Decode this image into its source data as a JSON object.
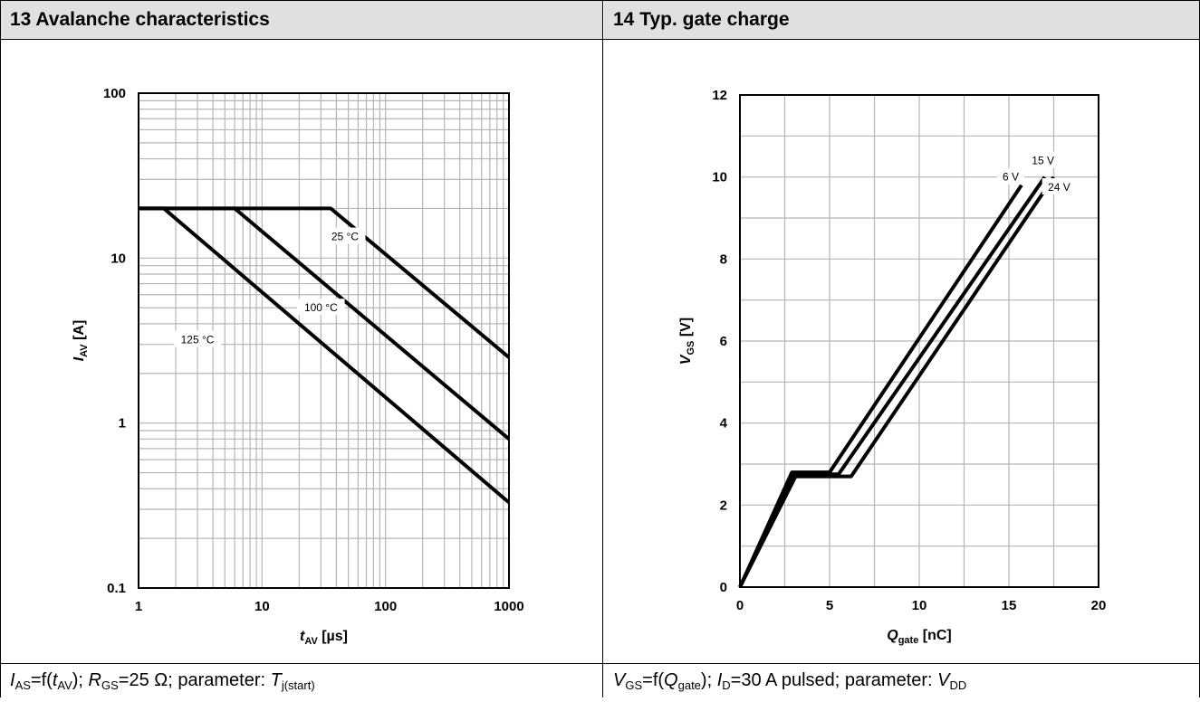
{
  "panels": [
    {
      "header": "13 Avalanche characteristics",
      "caption": {
        "p1": "I",
        "p1s": "AS",
        "p2": "=f(",
        "p3": "t",
        "p3s": "AV",
        "p4": "); ",
        "p5": "R",
        "p5s": "GS",
        "p6": "=25 Ω; parameter: ",
        "p7": "T",
        "p7s": "j(start)"
      }
    },
    {
      "header": "14 Typ. gate charge",
      "caption": {
        "p1": "V",
        "p1s": "GS",
        "p2": "=f(",
        "p3": "Q",
        "p3s": "gate",
        "p4": "); ",
        "p5": "I",
        "p5s": "D",
        "p6": "=30 A pulsed; parameter: ",
        "p7": "V",
        "p7s": "DD"
      }
    }
  ],
  "chart_data": [
    {
      "type": "line",
      "title": "13 Avalanche characteristics",
      "xlabel": {
        "main": "t",
        "sub": "AV",
        "unit": " [µs]"
      },
      "ylabel": {
        "main": "I",
        "sub": "AV",
        "unit": " [A]"
      },
      "xscale": "log",
      "yscale": "log",
      "xlim": [
        1,
        1000
      ],
      "ylim": [
        0.1,
        100
      ],
      "xticks": [
        1,
        10,
        100,
        1000
      ],
      "xtick_labels": [
        "1",
        "10",
        "100",
        "1000"
      ],
      "yticks": [
        0.1,
        1,
        10,
        100
      ],
      "ytick_labels": [
        "0.1",
        "1",
        "10",
        "100"
      ],
      "grid": true,
      "series": [
        {
          "name": "25 °C",
          "x": [
            1,
            36,
            1000
          ],
          "y": [
            20,
            20,
            2.5
          ],
          "label_at": [
            47,
            13.5
          ]
        },
        {
          "name": "100 °C",
          "x": [
            1,
            6,
            1000
          ],
          "y": [
            20,
            20,
            0.8
          ],
          "label_at": [
            30,
            5.0
          ]
        },
        {
          "name": "125 °C",
          "x": [
            1,
            1.6,
            1000
          ],
          "y": [
            20,
            20,
            0.33
          ],
          "label_at": [
            3.0,
            3.2
          ]
        }
      ]
    },
    {
      "type": "line",
      "title": "14 Typ. gate charge",
      "xlabel": {
        "main": "Q",
        "sub": "gate",
        "unit": " [nC]"
      },
      "ylabel": {
        "main": "V",
        "sub": "GS",
        "unit": " [V]"
      },
      "xlim": [
        0,
        20
      ],
      "ylim": [
        0,
        12
      ],
      "xticks": [
        0,
        5,
        10,
        15,
        20
      ],
      "xtick_labels": [
        "0",
        "5",
        "10",
        "15",
        "20"
      ],
      "yticks": [
        0,
        2,
        4,
        6,
        8,
        10,
        12
      ],
      "ytick_labels": [
        "0",
        "2",
        "4",
        "6",
        "8",
        "10",
        "12"
      ],
      "grid": true,
      "series": [
        {
          "name": "6 V",
          "x": [
            0,
            2.9,
            5.0,
            15.7
          ],
          "y": [
            0,
            2.8,
            2.8,
            9.8
          ],
          "label_at": [
            15.1,
            10.0
          ]
        },
        {
          "name": "15 V",
          "x": [
            0,
            3.0,
            5.5,
            17.0
          ],
          "y": [
            0,
            2.75,
            2.75,
            10.0
          ],
          "label_at": [
            16.9,
            10.4
          ]
        },
        {
          "name": "24 V",
          "x": [
            0,
            3.1,
            6.2,
            17.5
          ],
          "y": [
            0,
            2.7,
            2.7,
            10.0
          ],
          "label_at": [
            17.8,
            9.75
          ]
        }
      ]
    }
  ]
}
